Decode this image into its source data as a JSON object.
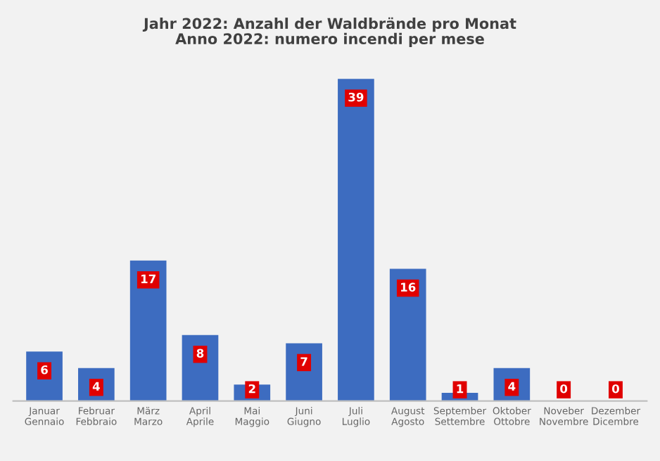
{
  "chart_data": {
    "type": "bar",
    "title": "Jahr 2022: Anzahl der Waldbrände pro Monat\nAnno 2022: numero incendi per mese",
    "categories": [
      "Januar\nGennaio",
      "Februar\nFebbraio",
      "März\nMarzo",
      "April\nAprile",
      "Mai\nMaggio",
      "Juni\nGiugno",
      "Juli\nLuglio",
      "August\nAgosto",
      "September\nSettembre",
      "Oktober\nOttobre",
      "Noveber\nNovembre",
      "Dezember\nDicembre"
    ],
    "values": [
      6,
      4,
      17,
      8,
      2,
      7,
      39,
      16,
      1,
      4,
      0,
      0
    ],
    "color": "#3d6cc0",
    "data_labels": true,
    "grid": false,
    "legend": false
  }
}
